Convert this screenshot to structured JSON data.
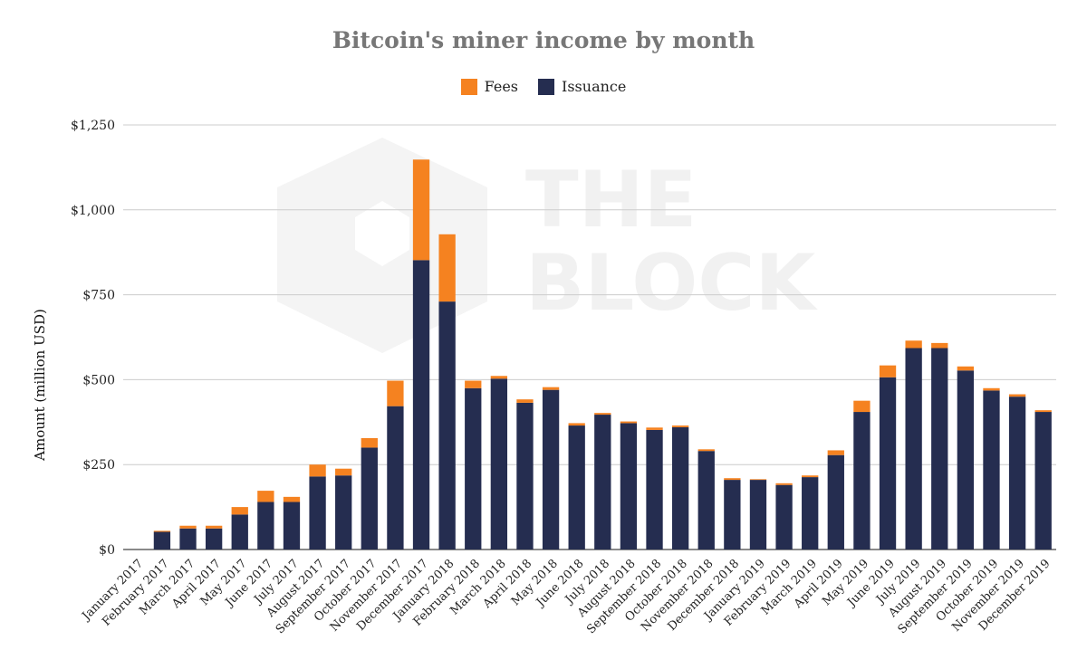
{
  "chart_data": {
    "type": "bar",
    "stacked": true,
    "title": "Bitcoin's miner income by month",
    "xlabel": "",
    "ylabel": "Amount (million USD)",
    "ylim": [
      0,
      1250
    ],
    "yticks": [
      0,
      250,
      500,
      750,
      1000,
      1250
    ],
    "ytick_labels": [
      "$0",
      "$250",
      "$500",
      "$750",
      "$1,000",
      "$1,250"
    ],
    "grid": true,
    "legend_position": "top-center",
    "categories": [
      "January 2017",
      "February 2017",
      "March 2017",
      "April 2017",
      "May 2017",
      "June 2017",
      "July 2017",
      "August 2017",
      "September 2017",
      "October 2017",
      "November 2017",
      "December 2017",
      "January 2018",
      "February 2018",
      "March 2018",
      "April 2018",
      "May 2018",
      "June 2018",
      "July 2018",
      "August 2018",
      "September 2018",
      "October 2018",
      "November 2018",
      "December 2018",
      "January 2019",
      "February 2019",
      "March 2019",
      "April 2019",
      "May 2019",
      "June 2019",
      "July 2019",
      "August 2019",
      "September 2019",
      "October 2019",
      "November 2019",
      "December 2019"
    ],
    "series": [
      {
        "name": "Issuance",
        "color": "#252d50",
        "values": [
          0,
          52,
          62,
          62,
          103,
          140,
          140,
          215,
          218,
          300,
          422,
          852,
          730,
          475,
          503,
          432,
          470,
          365,
          397,
          372,
          352,
          360,
          290,
          205,
          205,
          190,
          213,
          278,
          405,
          507,
          593,
          593,
          527,
          468,
          450,
          405
        ]
      },
      {
        "name": "Fees",
        "color": "#f58220",
        "values": [
          0,
          3,
          8,
          8,
          22,
          33,
          15,
          35,
          20,
          28,
          75,
          296,
          198,
          22,
          8,
          10,
          8,
          7,
          5,
          5,
          7,
          5,
          5,
          5,
          2,
          5,
          5,
          14,
          33,
          35,
          22,
          15,
          12,
          7,
          7,
          5
        ]
      }
    ]
  },
  "legend": [
    {
      "label": "Fees",
      "color": "#f58220"
    },
    {
      "label": "Issuance",
      "color": "#252d50"
    }
  ],
  "watermark": {
    "line1": "THE",
    "line2": "BLOCK"
  }
}
